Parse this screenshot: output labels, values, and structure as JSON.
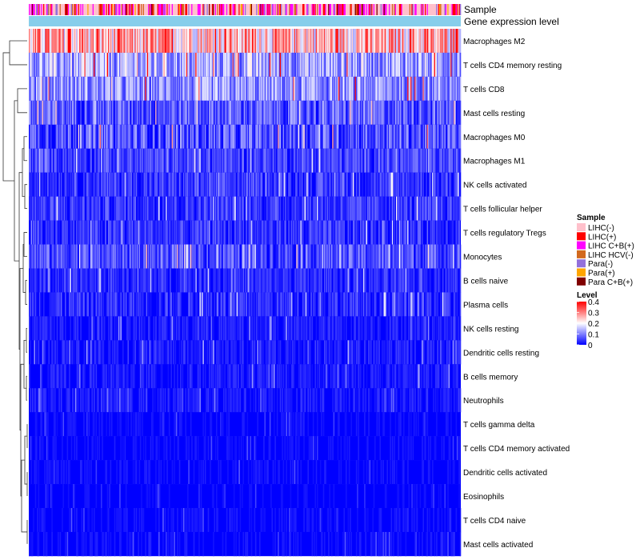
{
  "chart_data": {
    "type": "heatmap",
    "annotation_labels": {
      "sample": "Sample",
      "gene_expression": "Gene expression level"
    },
    "rows": [
      {
        "name": "Macrophages M2",
        "mean": 0.25,
        "spread": 0.12
      },
      {
        "name": "T cells CD4 memory resting",
        "mean": 0.13,
        "spread": 0.09
      },
      {
        "name": "T cells CD8",
        "mean": 0.11,
        "spread": 0.08
      },
      {
        "name": "Mast cells resting",
        "mean": 0.07,
        "spread": 0.07
      },
      {
        "name": "Macrophages M0",
        "mean": 0.06,
        "spread": 0.08
      },
      {
        "name": "Macrophages M1",
        "mean": 0.05,
        "spread": 0.05
      },
      {
        "name": "NK cells activated",
        "mean": 0.04,
        "spread": 0.05
      },
      {
        "name": "T cells follicular helper",
        "mean": 0.04,
        "spread": 0.05
      },
      {
        "name": "T cells regulatory  Tregs",
        "mean": 0.035,
        "spread": 0.05
      },
      {
        "name": "Monocytes",
        "mean": 0.06,
        "spread": 0.06
      },
      {
        "name": "B cells naive",
        "mean": 0.03,
        "spread": 0.04
      },
      {
        "name": "Plasma cells",
        "mean": 0.03,
        "spread": 0.05
      },
      {
        "name": "NK cells resting",
        "mean": 0.02,
        "spread": 0.03
      },
      {
        "name": "Dendritic cells resting",
        "mean": 0.015,
        "spread": 0.04
      },
      {
        "name": "B cells memory",
        "mean": 0.015,
        "spread": 0.03
      },
      {
        "name": "Neutrophils",
        "mean": 0.015,
        "spread": 0.03
      },
      {
        "name": "T cells gamma delta",
        "mean": 0.005,
        "spread": 0.02
      },
      {
        "name": "T cells CD4 memory activated",
        "mean": 0.005,
        "spread": 0.02
      },
      {
        "name": "Dendritic cells activated",
        "mean": 0.005,
        "spread": 0.02
      },
      {
        "name": "Eosinophils",
        "mean": 0.003,
        "spread": 0.015
      },
      {
        "name": "T cells CD4 naive",
        "mean": 0.005,
        "spread": 0.02
      },
      {
        "name": "Mast cells activated",
        "mean": 0.005,
        "spread": 0.02
      }
    ],
    "n_samples": 420,
    "sample_groups": [
      {
        "label": "LIHC(-)",
        "color": "#ffc0cb",
        "share": 0.45
      },
      {
        "label": "LIHC(+)",
        "color": "#ff0000",
        "share": 0.15
      },
      {
        "label": "LIHC C+B(+)",
        "color": "#ff00ff",
        "share": 0.2
      },
      {
        "label": "LIHC HCV(-)",
        "color": "#d2691e",
        "share": 0.07
      },
      {
        "label": "Para(-)",
        "color": "#9370db",
        "share": 0.06
      },
      {
        "label": "Para(+)",
        "color": "#ffa500",
        "share": 0.04
      },
      {
        "label": "Para C+B(+)",
        "color": "#800000",
        "share": 0.03
      }
    ],
    "gene_expression_color": "#87ceeb",
    "color_scale": {
      "stops": [
        {
          "value": 0,
          "color": "#0000ff"
        },
        {
          "value": 0.2,
          "color": "#ffffff"
        },
        {
          "value": 0.4,
          "color": "#ff0000"
        }
      ],
      "range": [
        0,
        0.4
      ]
    },
    "legend": {
      "sample_title": "Sample",
      "level_title": "Level",
      "level_ticks": [
        "0.4",
        "0.3",
        "0.2",
        "0.1",
        "0"
      ],
      "position": "right"
    }
  }
}
